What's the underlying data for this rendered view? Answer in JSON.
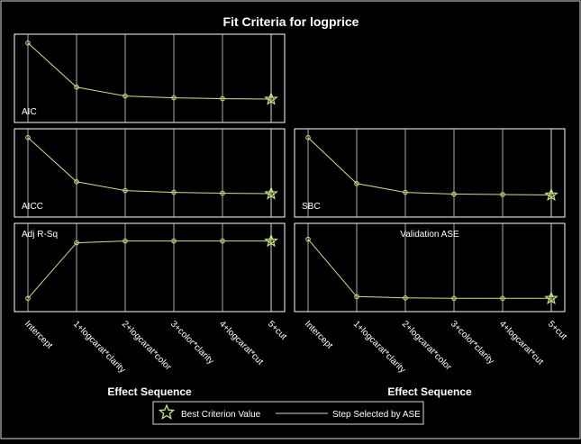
{
  "chart_data": {
    "type": "line",
    "title": "Fit Criteria for logprice",
    "xlabel": "Effect Sequence",
    "categories": [
      "Intercept",
      "1+logcarat*clarity",
      "2+logcarat*color",
      "3+color*clarity",
      "4+logcarat*cut",
      "5+cut"
    ],
    "panels": [
      {
        "name": "AIC",
        "values": [
          0.9,
          0.4,
          0.3,
          0.28,
          0.27,
          0.265
        ],
        "best_index": 5
      },
      {
        "name": "AICC",
        "values": [
          0.9,
          0.4,
          0.3,
          0.28,
          0.27,
          0.265
        ],
        "best_index": 5
      },
      {
        "name": "SBC",
        "values": [
          0.9,
          0.38,
          0.28,
          0.26,
          0.255,
          0.25
        ],
        "best_index": 5
      },
      {
        "name": "Adj R-Sq",
        "values": [
          0.15,
          0.78,
          0.8,
          0.8,
          0.8,
          0.8
        ],
        "best_index": 5
      },
      {
        "name": "Validation ASE",
        "values": [
          0.82,
          0.17,
          0.155,
          0.15,
          0.15,
          0.15
        ],
        "best_index": 5
      }
    ],
    "selected_step_index": 5,
    "legend": [
      "Best Criterion Value",
      "Step Selected by ASE"
    ],
    "legend_position": "bottom",
    "colors": {
      "background": "#000000",
      "line": "#c8e67a",
      "marker": "#c8e67a",
      "frame": "#ffffff",
      "grid": "#d9d9d9",
      "text": "#ffffff"
    }
  }
}
